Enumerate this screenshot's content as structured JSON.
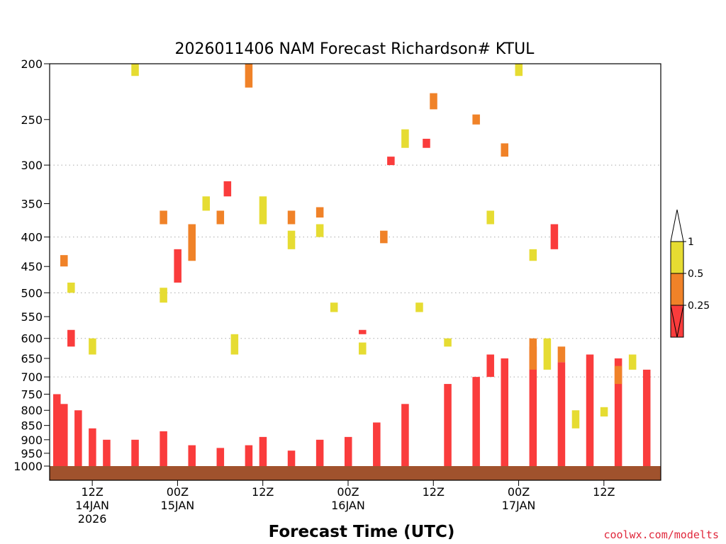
{
  "chart_data": {
    "type": "heatmap",
    "title": "2026011406 NAM Forecast Richardson# KTUL",
    "xlabel": "Forecast Time (UTC)",
    "ylabel": "",
    "credit": "coolwx.com/modelts",
    "y_scale": "log-pressure",
    "ylim": [
      1000,
      200
    ],
    "y_ticks": [
      200,
      250,
      300,
      350,
      400,
      450,
      500,
      550,
      600,
      650,
      700,
      750,
      800,
      850,
      900,
      950,
      1000
    ],
    "y_gridlines": [
      300,
      400,
      500,
      600,
      700
    ],
    "x_ticks": [
      {
        "hour": 12,
        "label": "12Z",
        "date": "14JAN",
        "year": "2026"
      },
      {
        "hour": 24,
        "label": "00Z",
        "date": "15JAN",
        "year": ""
      },
      {
        "hour": 36,
        "label": "12Z",
        "date": "",
        "year": ""
      },
      {
        "hour": 48,
        "label": "00Z",
        "date": "16JAN",
        "year": ""
      },
      {
        "hour": 60,
        "label": "12Z",
        "date": "",
        "year": ""
      },
      {
        "hour": 72,
        "label": "00Z",
        "date": "17JAN",
        "year": ""
      },
      {
        "hour": 84,
        "label": "12Z",
        "date": "",
        "year": ""
      }
    ],
    "xlim": [
      6,
      92
    ],
    "legend": {
      "placement": "right",
      "labels": [
        "1",
        "0.5",
        "0.25"
      ],
      "bins": [
        {
          "range": "0.5-1",
          "color": "#e6dc32"
        },
        {
          "range": "0.25-0.5",
          "color": "#f08228"
        },
        {
          "range": "<0.25",
          "color": "#fa3c3c"
        }
      ]
    },
    "colors": {
      "yellow": "#e6dc32",
      "orange": "#f08228",
      "red": "#fa3c3c",
      "ground": "#a0522d"
    },
    "cells": [
      {
        "t": 7,
        "p_range": [
          1000,
          750
        ],
        "ri": "<0.25"
      },
      {
        "t": 8,
        "p_range": [
          1000,
          780
        ],
        "ri": "<0.25"
      },
      {
        "t": 9,
        "p_range": [
          620,
          580
        ],
        "ri": "<0.25"
      },
      {
        "t": 10,
        "p_range": [
          1000,
          800
        ],
        "ri": "<0.25"
      },
      {
        "t": 12,
        "p_range": [
          1000,
          860
        ],
        "ri": "<0.25"
      },
      {
        "t": 14,
        "p_range": [
          1000,
          900
        ],
        "ri": "<0.25"
      },
      {
        "t": 18,
        "p_range": [
          1000,
          900
        ],
        "ri": "<0.25"
      },
      {
        "t": 22,
        "p_range": [
          1000,
          870
        ],
        "ri": "<0.25"
      },
      {
        "t": 24,
        "p_range": [
          480,
          420
        ],
        "ri": "<0.25"
      },
      {
        "t": 26,
        "p_range": [
          1000,
          920
        ],
        "ri": "<0.25"
      },
      {
        "t": 30,
        "p_range": [
          1000,
          930
        ],
        "ri": "<0.25"
      },
      {
        "t": 31,
        "p_range": [
          340,
          320
        ],
        "ri": "<0.25"
      },
      {
        "t": 34,
        "p_range": [
          1000,
          920
        ],
        "ri": "<0.25"
      },
      {
        "t": 36,
        "p_range": [
          1000,
          890
        ],
        "ri": "<0.25"
      },
      {
        "t": 40,
        "p_range": [
          1000,
          940
        ],
        "ri": "<0.25"
      },
      {
        "t": 44,
        "p_range": [
          1000,
          900
        ],
        "ri": "<0.25"
      },
      {
        "t": 48,
        "p_range": [
          1000,
          890
        ],
        "ri": "<0.25"
      },
      {
        "t": 50,
        "p_range": [
          590,
          580
        ],
        "ri": "<0.25"
      },
      {
        "t": 52,
        "p_range": [
          1000,
          840
        ],
        "ri": "<0.25"
      },
      {
        "t": 54,
        "p_range": [
          300,
          290
        ],
        "ri": "<0.25"
      },
      {
        "t": 56,
        "p_range": [
          1000,
          780
        ],
        "ri": "<0.25"
      },
      {
        "t": 59,
        "p_range": [
          280,
          270
        ],
        "ri": "<0.25"
      },
      {
        "t": 62,
        "p_range": [
          1000,
          720
        ],
        "ri": "<0.25"
      },
      {
        "t": 66,
        "p_range": [
          1000,
          700
        ],
        "ri": "<0.25"
      },
      {
        "t": 68,
        "p_range": [
          700,
          640
        ],
        "ri": "<0.25"
      },
      {
        "t": 70,
        "p_range": [
          1000,
          650
        ],
        "ri": "<0.25"
      },
      {
        "t": 74,
        "p_range": [
          1000,
          620
        ],
        "ri": "<0.25"
      },
      {
        "t": 77,
        "p_range": [
          420,
          380
        ],
        "ri": "<0.25"
      },
      {
        "t": 78,
        "p_range": [
          1000,
          660
        ],
        "ri": "<0.25"
      },
      {
        "t": 82,
        "p_range": [
          1000,
          640
        ],
        "ri": "<0.25"
      },
      {
        "t": 86,
        "p_range": [
          1000,
          650
        ],
        "ri": "<0.25"
      },
      {
        "t": 90,
        "p_range": [
          1000,
          680
        ],
        "ri": "<0.25"
      },
      {
        "t": 8,
        "p_range": [
          450,
          430
        ],
        "ri": "0.25-0.5"
      },
      {
        "t": 22,
        "p_range": [
          380,
          360
        ],
        "ri": "0.25-0.5"
      },
      {
        "t": 26,
        "p_range": [
          440,
          380
        ],
        "ri": "0.25-0.5"
      },
      {
        "t": 30,
        "p_range": [
          380,
          360
        ],
        "ri": "0.25-0.5"
      },
      {
        "t": 34,
        "p_range": [
          220,
          200
        ],
        "ri": "0.25-0.5"
      },
      {
        "t": 40,
        "p_range": [
          380,
          360
        ],
        "ri": "0.25-0.5"
      },
      {
        "t": 44,
        "p_range": [
          370,
          355
        ],
        "ri": "0.25-0.5"
      },
      {
        "t": 53,
        "p_range": [
          410,
          390
        ],
        "ri": "0.25-0.5"
      },
      {
        "t": 60,
        "p_range": [
          240,
          225
        ],
        "ri": "0.25-0.5"
      },
      {
        "t": 66,
        "p_range": [
          255,
          245
        ],
        "ri": "0.25-0.5"
      },
      {
        "t": 70,
        "p_range": [
          290,
          275
        ],
        "ri": "0.25-0.5"
      },
      {
        "t": 74,
        "p_range": [
          680,
          600
        ],
        "ri": "0.25-0.5"
      },
      {
        "t": 78,
        "p_range": [
          660,
          620
        ],
        "ri": "0.25-0.5"
      },
      {
        "t": 86,
        "p_range": [
          720,
          670
        ],
        "ri": "0.25-0.5"
      },
      {
        "t": 9,
        "p_range": [
          500,
          480
        ],
        "ri": "0.5-1"
      },
      {
        "t": 12,
        "p_range": [
          640,
          600
        ],
        "ri": "0.5-1"
      },
      {
        "t": 18,
        "p_range": [
          210,
          200
        ],
        "ri": "0.5-1"
      },
      {
        "t": 22,
        "p_range": [
          520,
          490
        ],
        "ri": "0.5-1"
      },
      {
        "t": 28,
        "p_range": [
          360,
          340
        ],
        "ri": "0.5-1"
      },
      {
        "t": 32,
        "p_range": [
          640,
          590
        ],
        "ri": "0.5-1"
      },
      {
        "t": 36,
        "p_range": [
          380,
          340
        ],
        "ri": "0.5-1"
      },
      {
        "t": 40,
        "p_range": [
          420,
          390
        ],
        "ri": "0.5-1"
      },
      {
        "t": 44,
        "p_range": [
          400,
          380
        ],
        "ri": "0.5-1"
      },
      {
        "t": 46,
        "p_range": [
          540,
          520
        ],
        "ri": "0.5-1"
      },
      {
        "t": 50,
        "p_range": [
          640,
          610
        ],
        "ri": "0.5-1"
      },
      {
        "t": 56,
        "p_range": [
          280,
          260
        ],
        "ri": "0.5-1"
      },
      {
        "t": 58,
        "p_range": [
          540,
          520
        ],
        "ri": "0.5-1"
      },
      {
        "t": 62,
        "p_range": [
          620,
          600
        ],
        "ri": "0.5-1"
      },
      {
        "t": 68,
        "p_range": [
          380,
          360
        ],
        "ri": "0.5-1"
      },
      {
        "t": 72,
        "p_range": [
          210,
          200
        ],
        "ri": "0.5-1"
      },
      {
        "t": 74,
        "p_range": [
          440,
          420
        ],
        "ri": "0.5-1"
      },
      {
        "t": 76,
        "p_range": [
          680,
          600
        ],
        "ri": "0.5-1"
      },
      {
        "t": 80,
        "p_range": [
          860,
          800
        ],
        "ri": "0.5-1"
      },
      {
        "t": 84,
        "p_range": [
          820,
          790
        ],
        "ri": "0.5-1"
      },
      {
        "t": 88,
        "p_range": [
          680,
          640
        ],
        "ri": "0.5-1"
      }
    ]
  }
}
